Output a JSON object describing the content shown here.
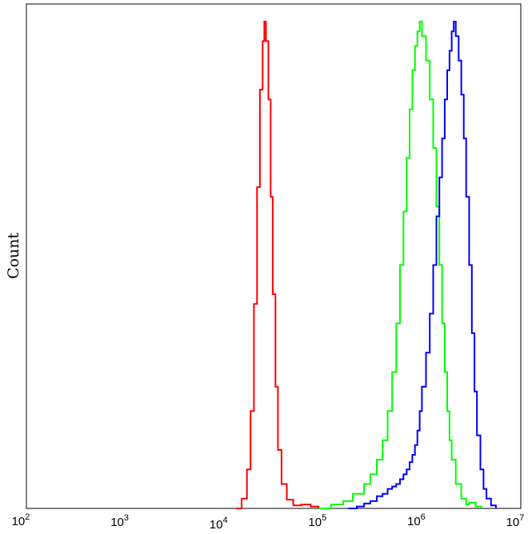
{
  "chart_data": {
    "type": "line",
    "title": "",
    "xlabel": "",
    "ylabel": "Count",
    "x_scale": "log",
    "xlim": [
      100,
      10000000
    ],
    "ylim": [
      0,
      1.0
    ],
    "grid": false,
    "x_ticks": [
      {
        "base": "10",
        "exp": "2",
        "value": 100
      },
      {
        "base": "10",
        "exp": "3",
        "value": 1000
      },
      {
        "base": "10",
        "exp": "4",
        "value": 10000
      },
      {
        "base": "10",
        "exp": "5",
        "value": 100000
      },
      {
        "base": "10",
        "exp": "6",
        "value": 1000000
      },
      {
        "base": "10",
        "exp": "7",
        "value": 10000000
      }
    ],
    "series": [
      {
        "color": "#ff0000",
        "points": [
          [
            13200,
            0
          ],
          [
            15000,
            0.02
          ],
          [
            17000,
            0.08
          ],
          [
            18500,
            0.2
          ],
          [
            20000,
            0.42
          ],
          [
            21500,
            0.66
          ],
          [
            23000,
            0.86
          ],
          [
            24500,
            0.96
          ],
          [
            25500,
            1.0
          ],
          [
            26500,
            0.96
          ],
          [
            28000,
            0.84
          ],
          [
            29500,
            0.64
          ],
          [
            31000,
            0.44
          ],
          [
            33000,
            0.25
          ],
          [
            35000,
            0.12
          ],
          [
            38000,
            0.05
          ],
          [
            43000,
            0.018
          ],
          [
            50000,
            0.006
          ],
          [
            60000,
            0.008
          ],
          [
            75000,
            0.004
          ],
          [
            90000,
            0
          ]
        ]
      },
      {
        "color": "#00ff00",
        "points": [
          [
            90000,
            0
          ],
          [
            120000,
            0.008
          ],
          [
            160000,
            0.015
          ],
          [
            200000,
            0.03
          ],
          [
            260000,
            0.05
          ],
          [
            300000,
            0.07
          ],
          [
            350000,
            0.1
          ],
          [
            400000,
            0.14
          ],
          [
            450000,
            0.2
          ],
          [
            500000,
            0.28
          ],
          [
            550000,
            0.38
          ],
          [
            600000,
            0.5
          ],
          [
            650000,
            0.61
          ],
          [
            700000,
            0.72
          ],
          [
            750000,
            0.82
          ],
          [
            800000,
            0.9
          ],
          [
            850000,
            0.95
          ],
          [
            900000,
            0.98
          ],
          [
            950000,
            1.0
          ],
          [
            1000000,
            0.97
          ],
          [
            1100000,
            0.92
          ],
          [
            1200000,
            0.84
          ],
          [
            1300000,
            0.74
          ],
          [
            1400000,
            0.62
          ],
          [
            1500000,
            0.5
          ],
          [
            1600000,
            0.38
          ],
          [
            1700000,
            0.28
          ],
          [
            1800000,
            0.2
          ],
          [
            1900000,
            0.14
          ],
          [
            2000000,
            0.1
          ],
          [
            2200000,
            0.05
          ],
          [
            2500000,
            0.02
          ],
          [
            2800000,
            0.008
          ],
          [
            3000000,
            0.012
          ],
          [
            3500000,
            0.004
          ],
          [
            4000000,
            0
          ]
        ]
      },
      {
        "color": "#0000ff",
        "points": [
          [
            180000,
            0
          ],
          [
            220000,
            0.004
          ],
          [
            260000,
            0.01
          ],
          [
            300000,
            0.015
          ],
          [
            350000,
            0.025
          ],
          [
            400000,
            0.03
          ],
          [
            450000,
            0.04
          ],
          [
            500000,
            0.045
          ],
          [
            550000,
            0.05
          ],
          [
            600000,
            0.06
          ],
          [
            650000,
            0.07
          ],
          [
            700000,
            0.08
          ],
          [
            750000,
            0.095
          ],
          [
            800000,
            0.11
          ],
          [
            850000,
            0.13
          ],
          [
            900000,
            0.16
          ],
          [
            950000,
            0.2
          ],
          [
            1000000,
            0.25
          ],
          [
            1100000,
            0.32
          ],
          [
            1200000,
            0.4
          ],
          [
            1300000,
            0.5
          ],
          [
            1400000,
            0.6
          ],
          [
            1500000,
            0.68
          ],
          [
            1600000,
            0.76
          ],
          [
            1700000,
            0.84
          ],
          [
            1800000,
            0.9
          ],
          [
            1900000,
            0.94
          ],
          [
            2000000,
            0.98
          ],
          [
            2100000,
            1.0
          ],
          [
            2200000,
            0.97
          ],
          [
            2350000,
            0.92
          ],
          [
            2500000,
            0.85
          ],
          [
            2650000,
            0.76
          ],
          [
            2800000,
            0.64
          ],
          [
            3000000,
            0.5
          ],
          [
            3200000,
            0.36
          ],
          [
            3400000,
            0.24
          ],
          [
            3600000,
            0.15
          ],
          [
            3900000,
            0.08
          ],
          [
            4200000,
            0.04
          ],
          [
            4500000,
            0.02
          ],
          [
            5000000,
            0.006
          ],
          [
            5600000,
            0
          ]
        ]
      }
    ]
  }
}
